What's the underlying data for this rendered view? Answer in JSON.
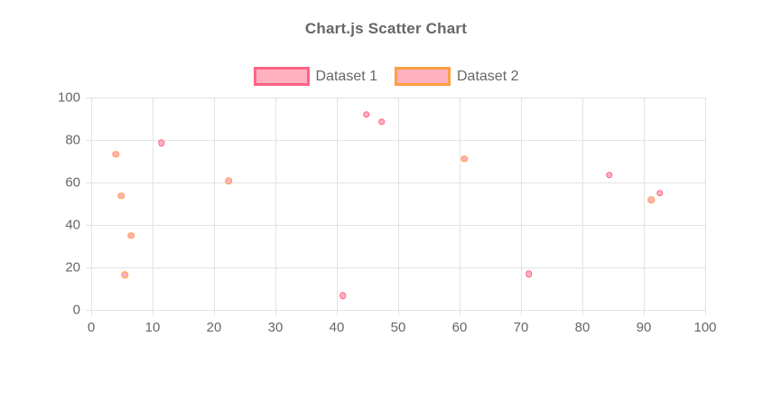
{
  "chart_data": {
    "type": "scatter",
    "title": "Chart.js Scatter Chart",
    "legend_position": "top",
    "grid": true,
    "x_axis": {
      "label": "",
      "min": 0,
      "max": 100,
      "ticks": [
        0,
        10,
        20,
        30,
        40,
        50,
        60,
        70,
        80,
        90,
        100
      ]
    },
    "y_axis": {
      "label": "",
      "min": 0,
      "max": 100,
      "ticks": [
        0,
        20,
        40,
        60,
        80,
        100
      ]
    },
    "series": [
      {
        "name": "Dataset 1",
        "border_color": "#ff6384",
        "fill_color": "#ffb1c1",
        "points": [
          {
            "x": 11.4,
            "y": 78.6
          },
          {
            "x": 41.0,
            "y": 6.7
          },
          {
            "x": 44.8,
            "y": 92.0
          },
          {
            "x": 47.3,
            "y": 88.6
          },
          {
            "x": 71.3,
            "y": 16.9
          },
          {
            "x": 84.4,
            "y": 63.5
          },
          {
            "x": 92.6,
            "y": 55.0
          }
        ]
      },
      {
        "name": "Dataset 2",
        "border_color": "#ff9f40",
        "fill_color": "#ffb1c1",
        "points": [
          {
            "x": 4.0,
            "y": 73.3
          },
          {
            "x": 4.9,
            "y": 53.7
          },
          {
            "x": 5.5,
            "y": 16.4
          },
          {
            "x": 6.5,
            "y": 35.0
          },
          {
            "x": 22.4,
            "y": 60.8
          },
          {
            "x": 60.8,
            "y": 71.1
          },
          {
            "x": 91.2,
            "y": 51.8
          }
        ]
      }
    ],
    "colors": {
      "text": "#666666",
      "grid": "#e3e3e3",
      "background": "#ffffff"
    }
  }
}
